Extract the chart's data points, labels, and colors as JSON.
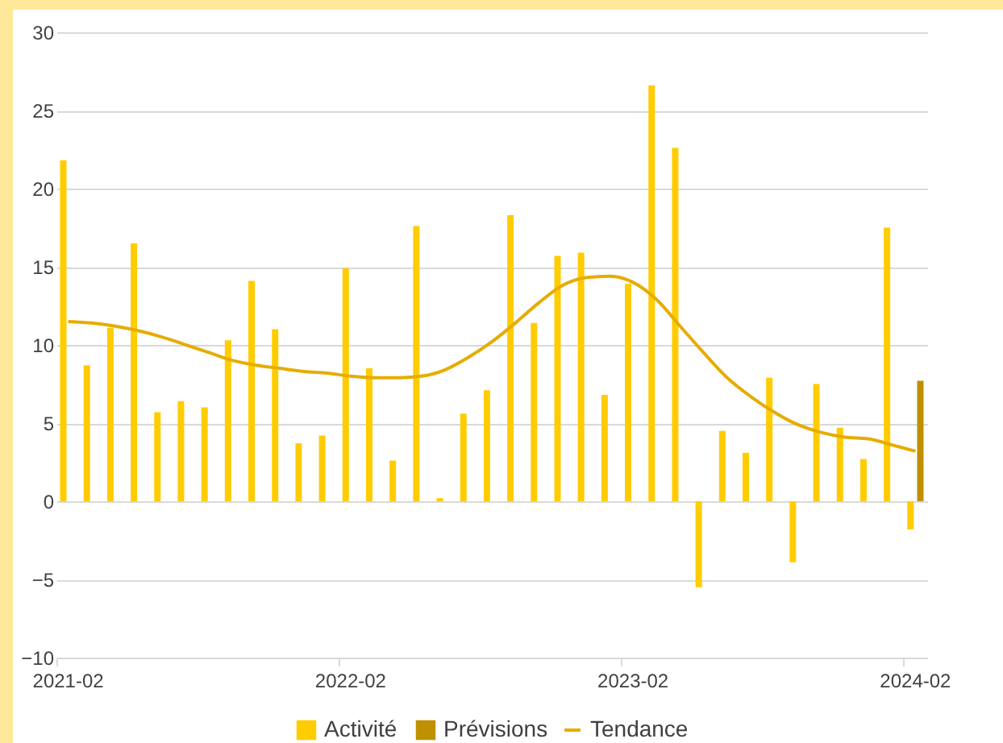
{
  "chart_data": {
    "type": "bar",
    "categories": [
      "2021-02",
      null,
      null,
      null,
      null,
      null,
      null,
      null,
      null,
      null,
      null,
      null,
      "2022-02",
      null,
      null,
      null,
      null,
      null,
      null,
      null,
      null,
      null,
      null,
      null,
      "2023-02",
      null,
      null,
      null,
      null,
      null,
      null,
      null,
      null,
      null,
      null,
      null,
      "2024-02"
    ],
    "series": [
      {
        "name": "Activité",
        "color": "#ffcc00",
        "values": [
          21.8,
          8.7,
          11.1,
          16.5,
          5.7,
          6.4,
          6.0,
          10.3,
          14.1,
          11.0,
          3.7,
          4.2,
          14.9,
          8.5,
          2.6,
          17.6,
          0.2,
          5.6,
          7.1,
          18.3,
          11.4,
          15.7,
          15.9,
          6.8,
          13.9,
          26.6,
          22.6,
          -5.5,
          4.5,
          3.1,
          7.9,
          -3.9,
          7.5,
          4.7,
          2.7,
          17.5,
          -1.8
        ]
      },
      {
        "name": "Prévisions",
        "color": "#bf9000",
        "values": [
          null,
          null,
          null,
          null,
          null,
          null,
          null,
          null,
          null,
          null,
          null,
          null,
          null,
          null,
          null,
          null,
          null,
          null,
          null,
          null,
          null,
          null,
          null,
          null,
          null,
          null,
          null,
          null,
          null,
          null,
          null,
          null,
          null,
          null,
          null,
          null,
          7.7
        ]
      },
      {
        "name": "Tendance",
        "type": "line",
        "color": "#e6ac00",
        "values": [
          11.5,
          11.4,
          11.2,
          10.9,
          10.5,
          10.0,
          9.5,
          9.0,
          8.7,
          8.5,
          8.3,
          8.2,
          8.0,
          7.9,
          7.9,
          8.0,
          8.4,
          9.2,
          10.2,
          11.4,
          12.7,
          13.8,
          14.3,
          14.4,
          14.0,
          12.9,
          11.2,
          9.5,
          7.9,
          6.7,
          5.7,
          4.9,
          4.4,
          4.1,
          4.0,
          3.6,
          3.2
        ]
      }
    ],
    "ylim": [
      -10,
      30
    ],
    "yticks": [
      -10,
      -5,
      0,
      5,
      10,
      15,
      20,
      25,
      30
    ],
    "grid": "y",
    "legend": "bottom"
  }
}
